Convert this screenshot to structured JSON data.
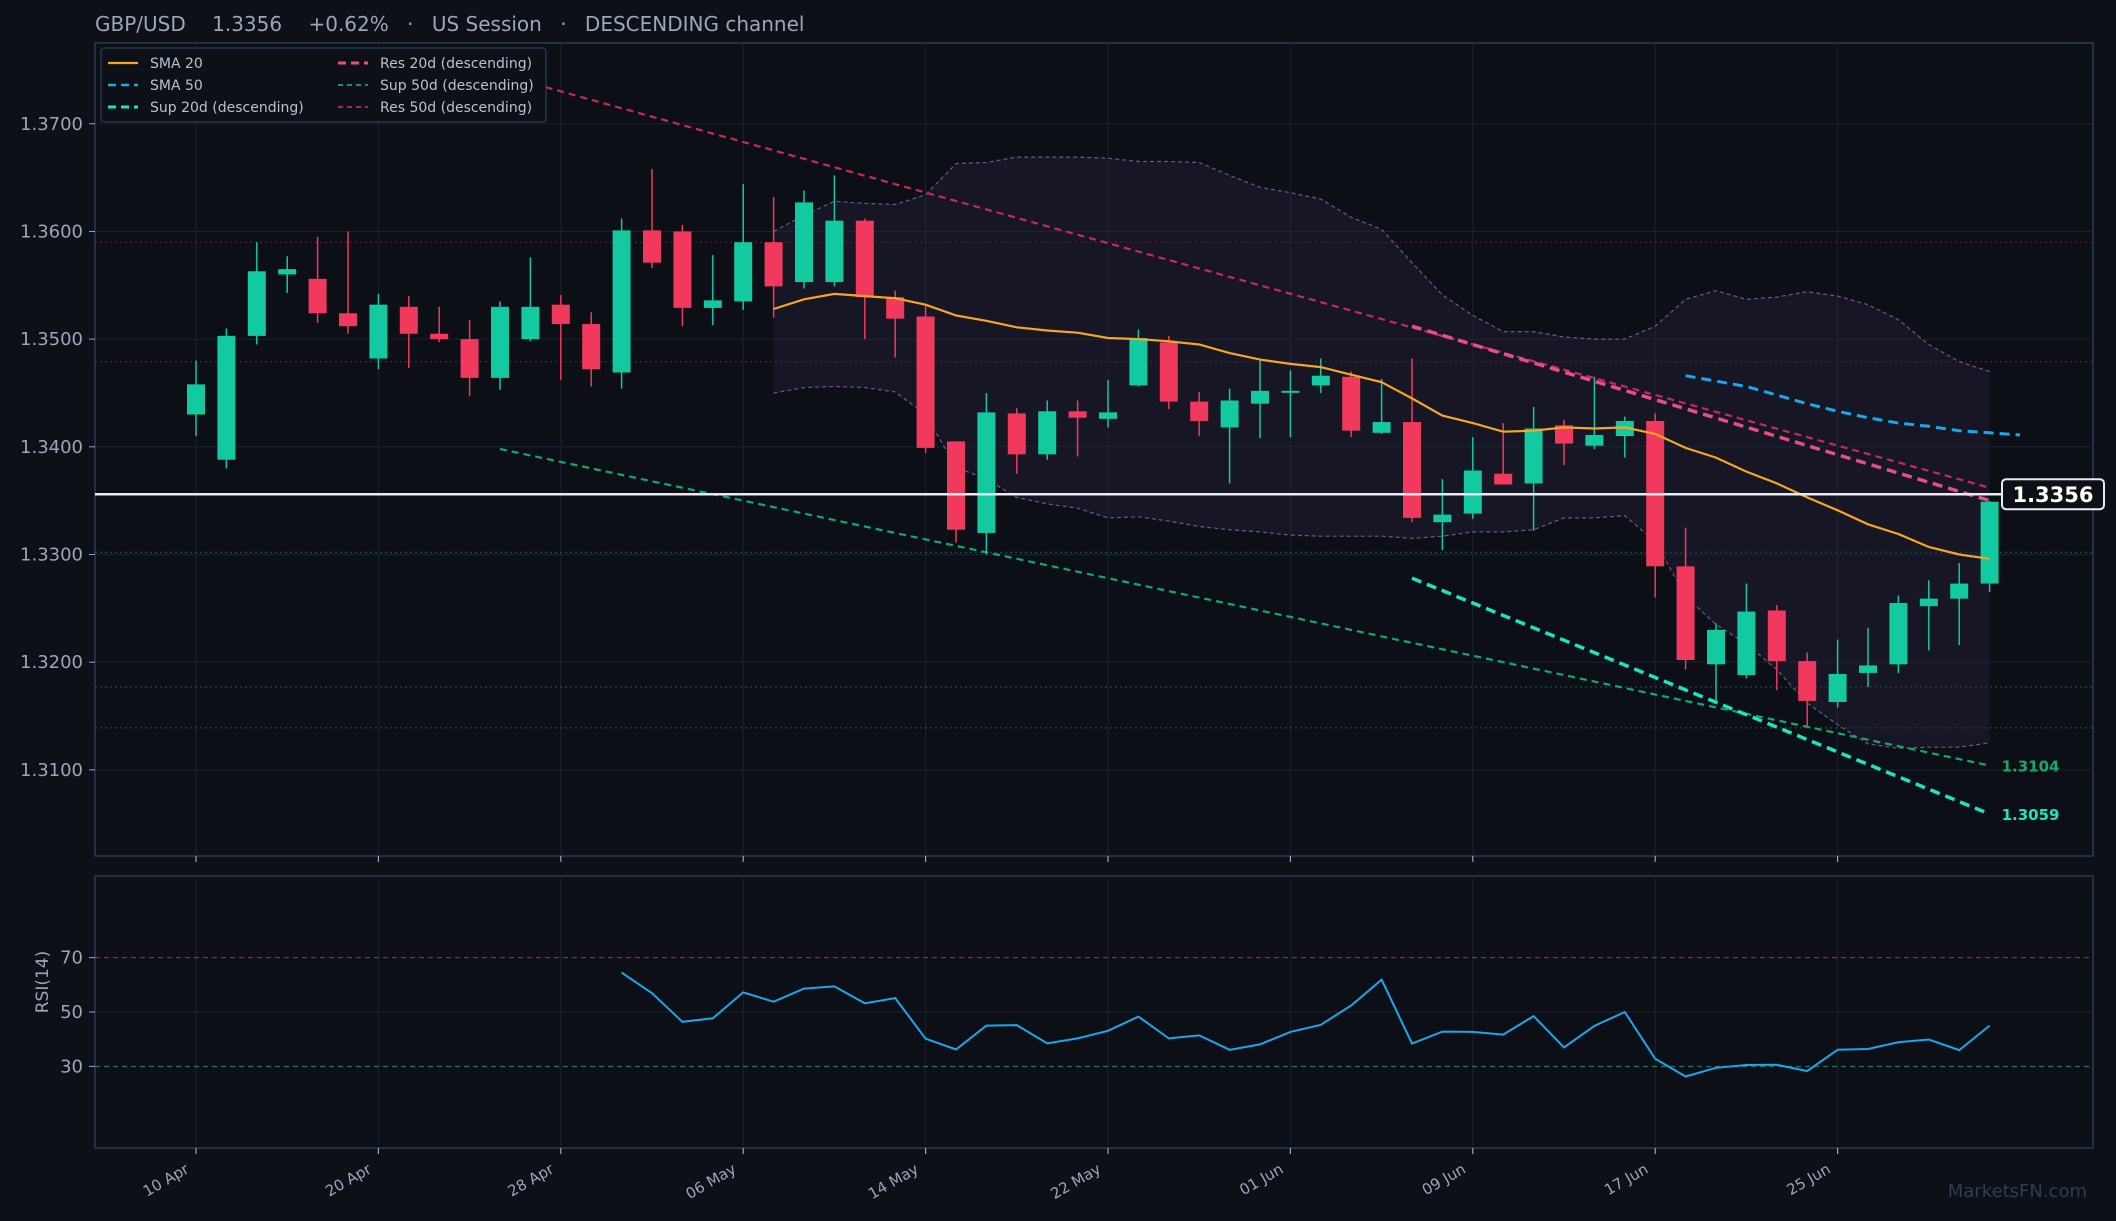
{
  "header": {
    "symbol": "GBP/USD",
    "price": "1.3356",
    "change": "+0.62%",
    "session": "US Session",
    "channel": "DESCENDING channel",
    "sep": "·"
  },
  "watermark": "MarketsFN.com",
  "colors": {
    "background": "#0d1017",
    "panel_border": "#2b4a66",
    "grid": "#1a2230",
    "axis_text": "#9aa7b8",
    "up": "#12c9a0",
    "down": "#f0395c",
    "sma20": "#f5a623",
    "sma50": "#1aa7ec",
    "sup20": "#19e6c0",
    "sup50": "#12a873",
    "res20": "#e84c8c",
    "res50": "#c72a5a",
    "rsi": "#1aa7ec",
    "bands": "#6a5a8a",
    "price_line": "#e8ecf2"
  },
  "chart_data": [
    {
      "type": "candlestick",
      "ylim": [
        1.302,
        1.3775
      ],
      "yticks": [
        1.37,
        1.36,
        1.35,
        1.34,
        1.33,
        1.32,
        1.31
      ],
      "ytick_labels": [
        "1.3700",
        "1.3600",
        "1.3500",
        "1.3400",
        "1.3300",
        "1.3200",
        "1.3100"
      ],
      "xtick_labels": [
        "10 Apr",
        "20 Apr",
        "28 Apr",
        "06 May",
        "14 May",
        "22 May",
        "01 Jun",
        "09 Jun",
        "17 Jun",
        "25 Jun"
      ],
      "xtick_index": [
        0,
        6,
        12,
        18,
        24,
        30,
        36,
        42,
        48,
        54
      ],
      "candles": [
        [
          1.343,
          1.348,
          1.341,
          1.3458
        ],
        [
          1.3388,
          1.351,
          1.338,
          1.3503
        ],
        [
          1.3503,
          1.359,
          1.3495,
          1.3563
        ],
        [
          1.356,
          1.3577,
          1.3543,
          1.3565
        ],
        [
          1.3556,
          1.3595,
          1.3515,
          1.3524
        ],
        [
          1.3524,
          1.36,
          1.3505,
          1.3512
        ],
        [
          1.3482,
          1.3542,
          1.3472,
          1.3532
        ],
        [
          1.353,
          1.354,
          1.3473,
          1.3505
        ],
        [
          1.3505,
          1.353,
          1.3497,
          1.35
        ],
        [
          1.35,
          1.3518,
          1.3447,
          1.3464
        ],
        [
          1.3464,
          1.3535,
          1.3453,
          1.353
        ],
        [
          1.35,
          1.3576,
          1.3498,
          1.353
        ],
        [
          1.3532,
          1.3541,
          1.3462,
          1.3514
        ],
        [
          1.3514,
          1.3525,
          1.3456,
          1.3472
        ],
        [
          1.3469,
          1.3612,
          1.3454,
          1.3601
        ],
        [
          1.3601,
          1.3658,
          1.3566,
          1.3571
        ],
        [
          1.36,
          1.3606,
          1.3512,
          1.3529
        ],
        [
          1.3529,
          1.3578,
          1.3513,
          1.3536
        ],
        [
          1.3535,
          1.3644,
          1.3527,
          1.359
        ],
        [
          1.359,
          1.3632,
          1.352,
          1.3549
        ],
        [
          1.3553,
          1.3638,
          1.3547,
          1.3627
        ],
        [
          1.3553,
          1.3652,
          1.3549,
          1.361
        ],
        [
          1.361,
          1.3612,
          1.35,
          1.3539
        ],
        [
          1.3539,
          1.3545,
          1.3483,
          1.3519
        ],
        [
          1.3521,
          1.3531,
          1.3394,
          1.3399
        ],
        [
          1.3405,
          1.3405,
          1.3311,
          1.3323
        ],
        [
          1.332,
          1.345,
          1.33,
          1.3432
        ],
        [
          1.3431,
          1.3436,
          1.3375,
          1.3393
        ],
        [
          1.3393,
          1.3443,
          1.3388,
          1.3433
        ],
        [
          1.3433,
          1.3443,
          1.3391,
          1.3427
        ],
        [
          1.3426,
          1.3462,
          1.3418,
          1.3432
        ],
        [
          1.3457,
          1.3509,
          1.3456,
          1.3501
        ],
        [
          1.3497,
          1.3503,
          1.3435,
          1.3442
        ],
        [
          1.3442,
          1.3451,
          1.341,
          1.3424
        ],
        [
          1.3418,
          1.3454,
          1.3366,
          1.3443
        ],
        [
          1.344,
          1.3482,
          1.3408,
          1.3452
        ],
        [
          1.3451,
          1.3471,
          1.3409,
          1.3452
        ],
        [
          1.3457,
          1.3482,
          1.345,
          1.3466
        ],
        [
          1.3465,
          1.347,
          1.3409,
          1.3415
        ],
        [
          1.3413,
          1.3463,
          1.3412,
          1.3423
        ],
        [
          1.3423,
          1.3482,
          1.333,
          1.3334
        ],
        [
          1.333,
          1.337,
          1.3304,
          1.3337
        ],
        [
          1.3338,
          1.3409,
          1.3333,
          1.3378
        ],
        [
          1.3375,
          1.3422,
          1.3365,
          1.3365
        ],
        [
          1.3366,
          1.3437,
          1.3322,
          1.3417
        ],
        [
          1.342,
          1.3425,
          1.3383,
          1.3403
        ],
        [
          1.3401,
          1.3465,
          1.3398,
          1.3411
        ],
        [
          1.341,
          1.3428,
          1.339,
          1.3424
        ],
        [
          1.3424,
          1.3431,
          1.326,
          1.3289
        ],
        [
          1.3289,
          1.3325,
          1.3193,
          1.3202
        ],
        [
          1.3198,
          1.3236,
          1.3163,
          1.323
        ],
        [
          1.3188,
          1.3273,
          1.3185,
          1.3247
        ],
        [
          1.3248,
          1.3253,
          1.3174,
          1.3201
        ],
        [
          1.3201,
          1.3209,
          1.314,
          1.3164
        ],
        [
          1.3163,
          1.3221,
          1.3158,
          1.3189
        ],
        [
          1.319,
          1.3232,
          1.3177,
          1.3197
        ],
        [
          1.3198,
          1.3262,
          1.319,
          1.3255
        ],
        [
          1.3252,
          1.3276,
          1.3211,
          1.3259
        ],
        [
          1.3259,
          1.3292,
          1.3216,
          1.3273
        ],
        [
          1.3273,
          1.335,
          1.3265,
          1.3349
        ]
      ],
      "sma20": {
        "start_index": 19,
        "values": [
          1.3528,
          1.3537,
          1.3542,
          1.354,
          1.3538,
          1.3532,
          1.3522,
          1.3517,
          1.3511,
          1.3508,
          1.3506,
          1.3501,
          1.35,
          1.3498,
          1.3495,
          1.3487,
          1.3481,
          1.3477,
          1.3474,
          1.3467,
          1.346,
          1.3445,
          1.3429,
          1.3422,
          1.3414,
          1.3415,
          1.3418,
          1.3417,
          1.3418,
          1.3412,
          1.3399,
          1.339,
          1.3377,
          1.3366,
          1.3353,
          1.3341,
          1.3328,
          1.3319,
          1.3307,
          1.33,
          1.3296
        ]
      },
      "sma50": {
        "start_index": 49,
        "values": [
          1.3466,
          1.3461,
          1.3456,
          1.3448,
          1.344,
          1.3433,
          1.3427,
          1.3422,
          1.3419,
          1.3415,
          1.3413,
          1.3411
        ]
      },
      "bollinger": {
        "start_index": 19,
        "upper": [
          1.36,
          1.3615,
          1.3628,
          1.3626,
          1.3625,
          1.3634,
          1.3663,
          1.3664,
          1.3669,
          1.3669,
          1.3669,
          1.3668,
          1.3665,
          1.3665,
          1.3664,
          1.3652,
          1.3641,
          1.3636,
          1.363,
          1.3613,
          1.3602,
          1.3571,
          1.3541,
          1.3522,
          1.3507,
          1.3507,
          1.3502,
          1.35,
          1.35,
          1.3512,
          1.3537,
          1.3545,
          1.3537,
          1.3539,
          1.3544,
          1.354,
          1.3532,
          1.3518,
          1.3495,
          1.3479,
          1.347
        ],
        "lower": [
          1.345,
          1.3455,
          1.3456,
          1.3455,
          1.3451,
          1.343,
          1.3381,
          1.337,
          1.3353,
          1.3347,
          1.3343,
          1.3334,
          1.3335,
          1.3331,
          1.3326,
          1.3323,
          1.3321,
          1.3318,
          1.3317,
          1.3317,
          1.3317,
          1.3315,
          1.3317,
          1.3321,
          1.3321,
          1.3323,
          1.3334,
          1.3334,
          1.3336,
          1.3312,
          1.3261,
          1.3235,
          1.3217,
          1.3193,
          1.3162,
          1.3142,
          1.3124,
          1.312,
          1.3121,
          1.3121,
          1.3125
        ]
      },
      "series": [
        {
          "name": "SMA 20"
        },
        {
          "name": "SMA 50"
        },
        {
          "name": "Sup 20d (descending)"
        },
        {
          "name": "Res 20d (descending)"
        },
        {
          "name": "Sup 50d (descending)"
        },
        {
          "name": "Res 50d (descending)"
        }
      ],
      "trendlines": [
        {
          "key": "res50",
          "from": [
            11.5,
            1.3734
          ],
          "to": [
            59,
            1.3362
          ]
        },
        {
          "key": "sup50",
          "from": [
            10,
            1.3398
          ],
          "to": [
            59,
            1.3104
          ],
          "label": "1.3104"
        },
        {
          "key": "res20",
          "from": [
            40,
            1.3512
          ],
          "to": [
            59,
            1.335
          ]
        },
        {
          "key": "sup20",
          "from": [
            40,
            1.3278
          ],
          "to": [
            59,
            1.3059
          ],
          "label": "1.3059"
        }
      ],
      "current_price": 1.3356,
      "current_price_label": "1.3356",
      "levels": [
        {
          "value": 1.359,
          "key": "res50"
        },
        {
          "value": 1.3479,
          "key": "res50"
        },
        {
          "value": 1.3302,
          "key": "sup50"
        },
        {
          "value": 1.3177,
          "key": "sup50"
        },
        {
          "value": 1.3139,
          "key": "sup50"
        }
      ]
    },
    {
      "type": "line",
      "ylabel": "RSI(14)",
      "ylim": [
        0,
        100
      ],
      "yticks": [
        70,
        50,
        30
      ],
      "ytick_labels": [
        "70",
        "50",
        "30"
      ],
      "start_index": 14,
      "values": [
        64.5,
        56.9,
        46.4,
        47.7,
        57.2,
        53.8,
        58.6,
        59.4,
        53.2,
        55.1,
        40.2,
        36.2,
        45.0,
        45.2,
        38.5,
        40.3,
        43.1,
        48.3,
        40.3,
        41.4,
        36.1,
        38.1,
        42.7,
        45.3,
        52.4,
        61.9,
        38.4,
        42.8,
        42.7,
        41.7,
        48.5,
        37.0,
        44.9,
        50.0,
        32.8,
        26.3,
        29.5,
        30.5,
        30.6,
        28.3,
        36.1,
        36.4,
        38.9,
        39.9,
        36.0,
        45.0
      ]
    }
  ]
}
